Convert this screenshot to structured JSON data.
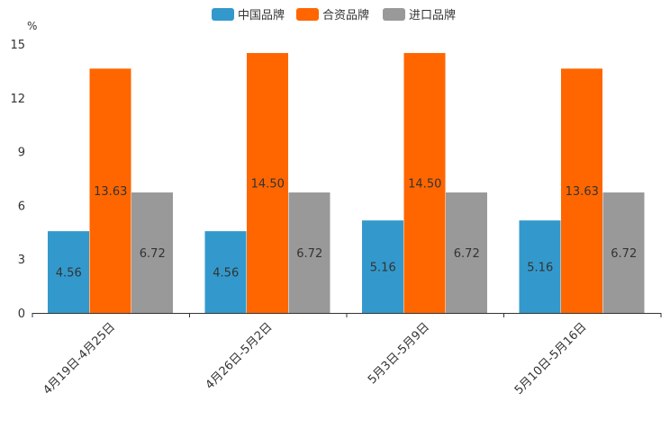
{
  "chart_data": {
    "type": "bar",
    "title": "",
    "ylabel": "%",
    "xlabel": "",
    "ylim": [
      0,
      15
    ],
    "yticks": [
      0,
      3,
      6,
      9,
      12,
      15
    ],
    "categories": [
      "4月19日-4月25日",
      "4月26日-5月2日",
      "5月3日-5月9日",
      "5月10日-5月16日"
    ],
    "series": [
      {
        "name": "中国品牌",
        "color": "#3399cc",
        "values": [
          4.56,
          4.56,
          5.16,
          5.16
        ],
        "labels": [
          "4.56",
          "4.56",
          "5.16",
          "5.16"
        ]
      },
      {
        "name": "合资品牌",
        "color": "#ff6600",
        "values": [
          13.63,
          14.5,
          14.5,
          13.63
        ],
        "labels": [
          "13.63",
          "14.50",
          "14.50",
          "13.63"
        ]
      },
      {
        "name": "进口品牌",
        "color": "#999999",
        "values": [
          6.72,
          6.72,
          6.72,
          6.72
        ],
        "labels": [
          "6.72",
          "6.72",
          "6.72",
          "6.72"
        ]
      }
    ],
    "legend_position": "top-center"
  }
}
